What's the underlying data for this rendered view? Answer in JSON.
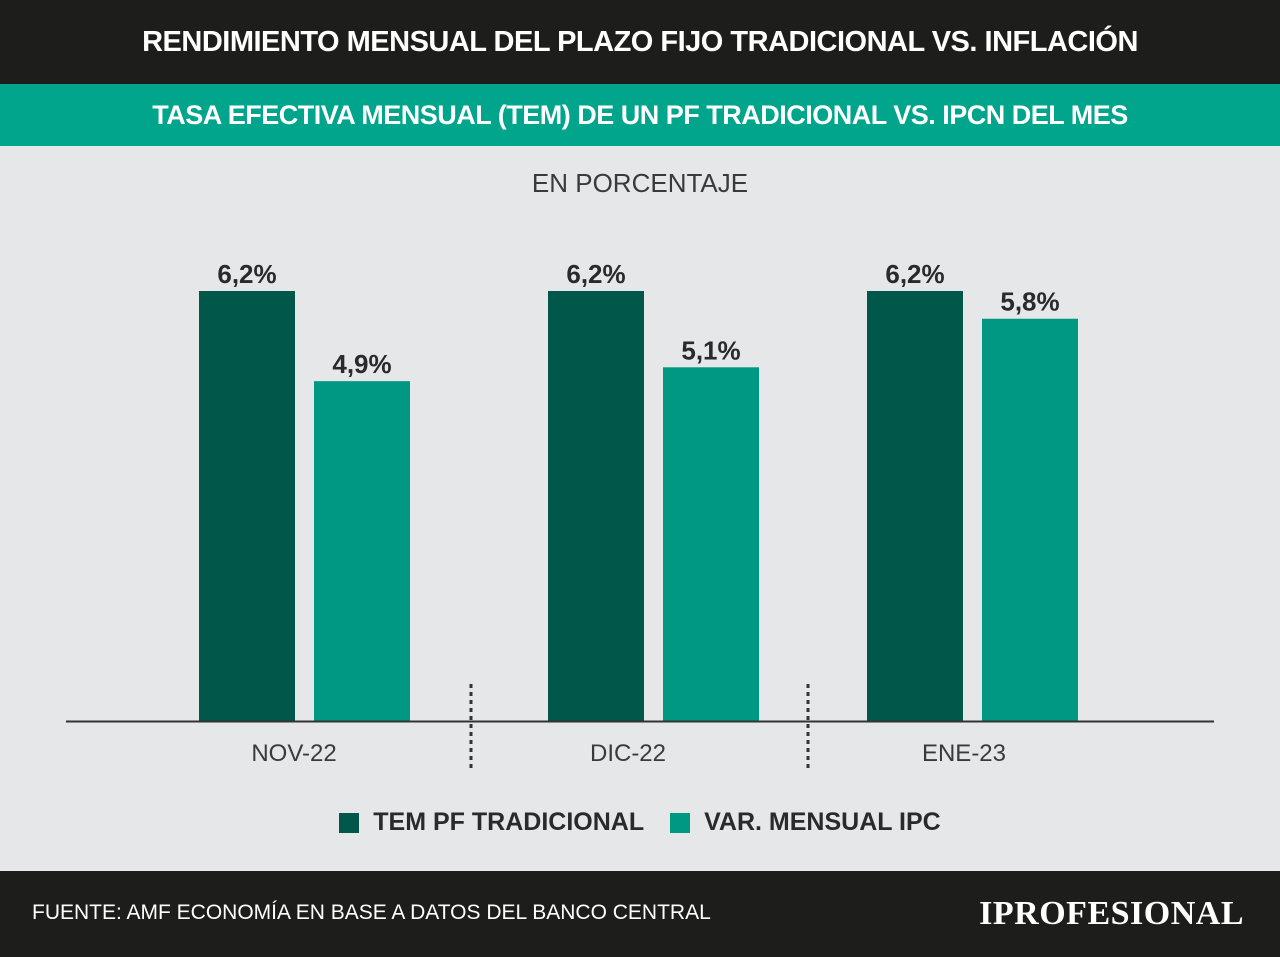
{
  "header": {
    "title": "RENDIMIENTO MENSUAL DEL PLAZO FIJO TRADICIONAL VS. INFLACIÓN",
    "subtitle": "TASA EFECTIVA MENSUAL (TEM) DE UN PF TRADICIONAL VS. IPCN DEL MES"
  },
  "chart_data": {
    "type": "bar",
    "unit_label": "EN PORCENTAJE",
    "categories": [
      "NOV-22",
      "DIC-22",
      "ENE-23"
    ],
    "series": [
      {
        "name": "TEM PF TRADICIONAL",
        "values": [
          6.2,
          6.2,
          6.2
        ],
        "labels": [
          "6,2%",
          "6,2%",
          "6,2%"
        ],
        "color": "#00574a"
      },
      {
        "name": "VAR. MENSUAL IPC",
        "values": [
          4.9,
          5.1,
          5.8
        ],
        "labels": [
          "4,9%",
          "5,1%",
          "5,8%"
        ],
        "color": "#009883"
      }
    ],
    "ylim": [
      0,
      6.2
    ],
    "grid": false,
    "legend": "bottom"
  },
  "footer": {
    "source": "FUENTE: AMF ECONOMÍA EN BASE A DATOS DEL BANCO CENTRAL",
    "logo": "IPROFESIONAL"
  }
}
